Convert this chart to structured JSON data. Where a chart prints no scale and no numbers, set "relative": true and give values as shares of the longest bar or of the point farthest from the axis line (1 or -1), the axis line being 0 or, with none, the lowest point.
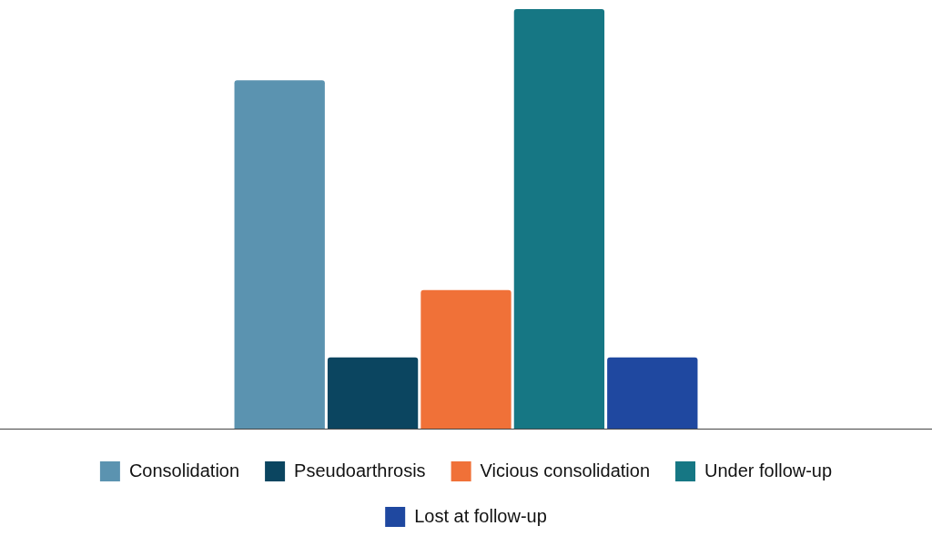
{
  "chart_data": {
    "type": "bar",
    "relative": true,
    "categories": [
      null
    ],
    "legend": "bottom",
    "series": [
      {
        "name": "Consolidation",
        "color": "#5b93b0",
        "values": [
          0.83
        ]
      },
      {
        "name": "Pseudoarthrosis",
        "color": "#0b4560",
        "values": [
          0.17
        ]
      },
      {
        "name": "Vicious consolidation",
        "color": "#f07138",
        "values": [
          0.33
        ]
      },
      {
        "name": "Under follow-up",
        "color": "#167784",
        "values": [
          1
        ]
      },
      {
        "name": "Lost at follow-up",
        "color": "#1f48a0",
        "values": [
          0.17
        ]
      }
    ]
  }
}
